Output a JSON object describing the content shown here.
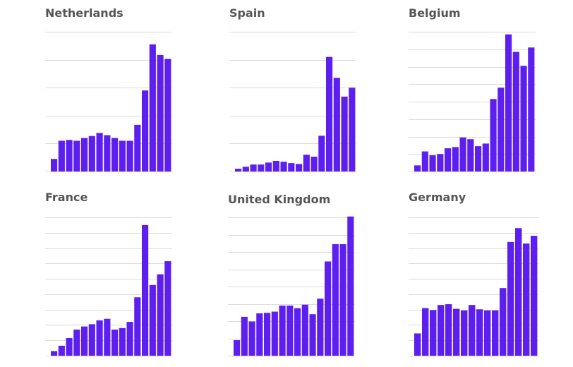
{
  "chart_data": [
    {
      "type": "bar",
      "title": "Netherlands",
      "ylim": [
        0,
        5
      ],
      "grid": true,
      "values": [
        0.45,
        1.1,
        1.13,
        1.1,
        1.2,
        1.27,
        1.38,
        1.3,
        1.2,
        1.1,
        1.1,
        1.67,
        2.9,
        4.55,
        4.17,
        4.03
      ],
      "color": "#5d1ff0"
    },
    {
      "type": "bar",
      "title": "Spain",
      "ylim": [
        0,
        5
      ],
      "grid": true,
      "values": [
        0.1,
        0.17,
        0.25,
        0.25,
        0.32,
        0.38,
        0.35,
        0.3,
        0.27,
        0.6,
        0.53,
        1.28,
        4.1,
        3.35,
        2.68,
        3.0
      ],
      "color": "#5d1ff0"
    },
    {
      "type": "bar",
      "title": "Belgium",
      "ylim": [
        0,
        8
      ],
      "grid": true,
      "values": [
        0.35,
        1.15,
        0.93,
        1.0,
        1.33,
        1.4,
        1.95,
        1.85,
        1.45,
        1.6,
        4.15,
        4.8,
        7.85,
        6.85,
        6.05,
        7.1
      ],
      "color": "#5d1ff0"
    },
    {
      "type": "bar",
      "title": "France",
      "ylim": [
        0,
        9
      ],
      "grid": true,
      "values": [
        0.3,
        0.65,
        1.15,
        1.7,
        1.9,
        2.05,
        2.3,
        2.4,
        1.7,
        1.8,
        2.2,
        3.8,
        8.5,
        4.6,
        5.3,
        6.15
      ],
      "color": "#5d1ff0"
    },
    {
      "type": "bar",
      "title": "United Kingdom",
      "ylim": [
        0,
        8
      ],
      "grid": true,
      "values": [
        0.9,
        2.25,
        1.98,
        2.45,
        2.48,
        2.55,
        2.9,
        2.9,
        2.75,
        2.95,
        2.4,
        3.3,
        5.45,
        6.45,
        6.45,
        8.05
      ],
      "color": "#5d1ff0"
    },
    {
      "type": "bar",
      "title": "Germany",
      "ylim": [
        0,
        9
      ],
      "grid": true,
      "values": [
        1.45,
        3.1,
        2.97,
        3.3,
        3.35,
        3.05,
        2.95,
        3.3,
        3.02,
        2.95,
        2.95,
        4.4,
        7.4,
        8.3,
        7.3,
        7.8
      ],
      "color": "#5d1ff0"
    }
  ]
}
